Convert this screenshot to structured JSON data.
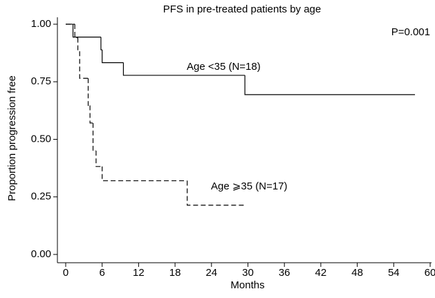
{
  "chart_data": {
    "type": "step",
    "title": "PFS in pre-treated patients by age",
    "x_label": "Months",
    "y_label": "Proportion progression free",
    "annotation": "P=0.001",
    "xlim": [
      0,
      60
    ],
    "xticks": [
      0,
      6,
      12,
      18,
      24,
      30,
      36,
      42,
      48,
      54,
      60
    ],
    "ylim": [
      0,
      1
    ],
    "yticks": [
      {
        "value": 0,
        "label": "0.00"
      },
      {
        "value": 0.25,
        "label": "0.25"
      },
      {
        "value": 0.5,
        "label": "0.50"
      },
      {
        "value": 0.75,
        "label": "0.75"
      },
      {
        "value": 1,
        "label": "1.00"
      }
    ],
    "series": [
      {
        "name": "Age <35 (N=18)",
        "color": "#000000",
        "dashed": false,
        "x": [
          0,
          1.2,
          5.8,
          6.0,
          9.5,
          29.5,
          57.5
        ],
        "values": [
          1,
          0.944,
          0.889,
          0.833,
          0.778,
          0.694,
          0.694
        ]
      },
      {
        "name": "Age ⩾35 (N=17)",
        "color": "#000000",
        "dashed": true,
        "x": [
          0,
          1.5,
          2.0,
          2.3,
          3.7,
          4.0,
          4.5,
          5.0,
          6.0,
          20.0,
          29.5
        ],
        "values": [
          1,
          0.941,
          0.882,
          0.765,
          0.647,
          0.571,
          0.45,
          0.382,
          0.32,
          0.214,
          0.214
        ]
      }
    ]
  }
}
